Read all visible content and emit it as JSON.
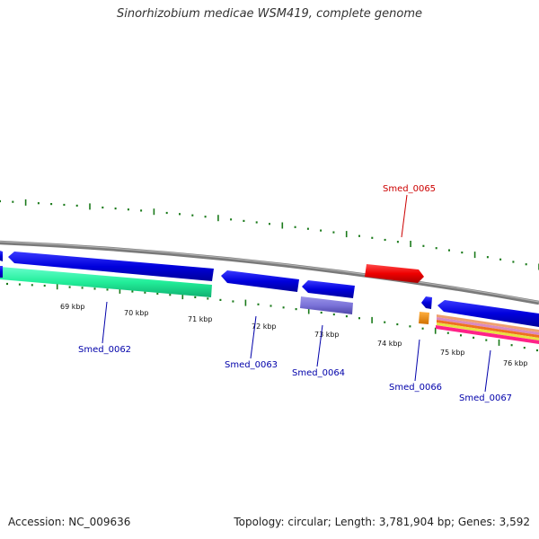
{
  "title": "Sinorhizobium medicae WSM419, complete genome",
  "footer": {
    "accession": "Accession: NC_009636",
    "topology": "Topology: circular; Length: 3,781,904 bp; Genes: 3,592"
  },
  "colors": {
    "backbone": "#8a8a8a",
    "tick": "#1a7a1a",
    "forward_gene": "#e00000",
    "reverse_gene": "#0000dd",
    "label_forward": "#cc0000",
    "label_reverse": "#0000aa"
  },
  "kbp_labels": [
    "69 kbp",
    "70 kbp",
    "71 kbp",
    "72 kbp",
    "73 kbp",
    "74 kbp",
    "75 kbp",
    "76 kbp"
  ],
  "genes": [
    {
      "name": "Smed_0062",
      "strand": "reverse"
    },
    {
      "name": "Smed_0063",
      "strand": "reverse"
    },
    {
      "name": "Smed_0064",
      "strand": "reverse"
    },
    {
      "name": "Smed_0065",
      "strand": "forward"
    },
    {
      "name": "Smed_0066",
      "strand": "reverse"
    },
    {
      "name": "Smed_0067",
      "strand": "reverse"
    }
  ]
}
